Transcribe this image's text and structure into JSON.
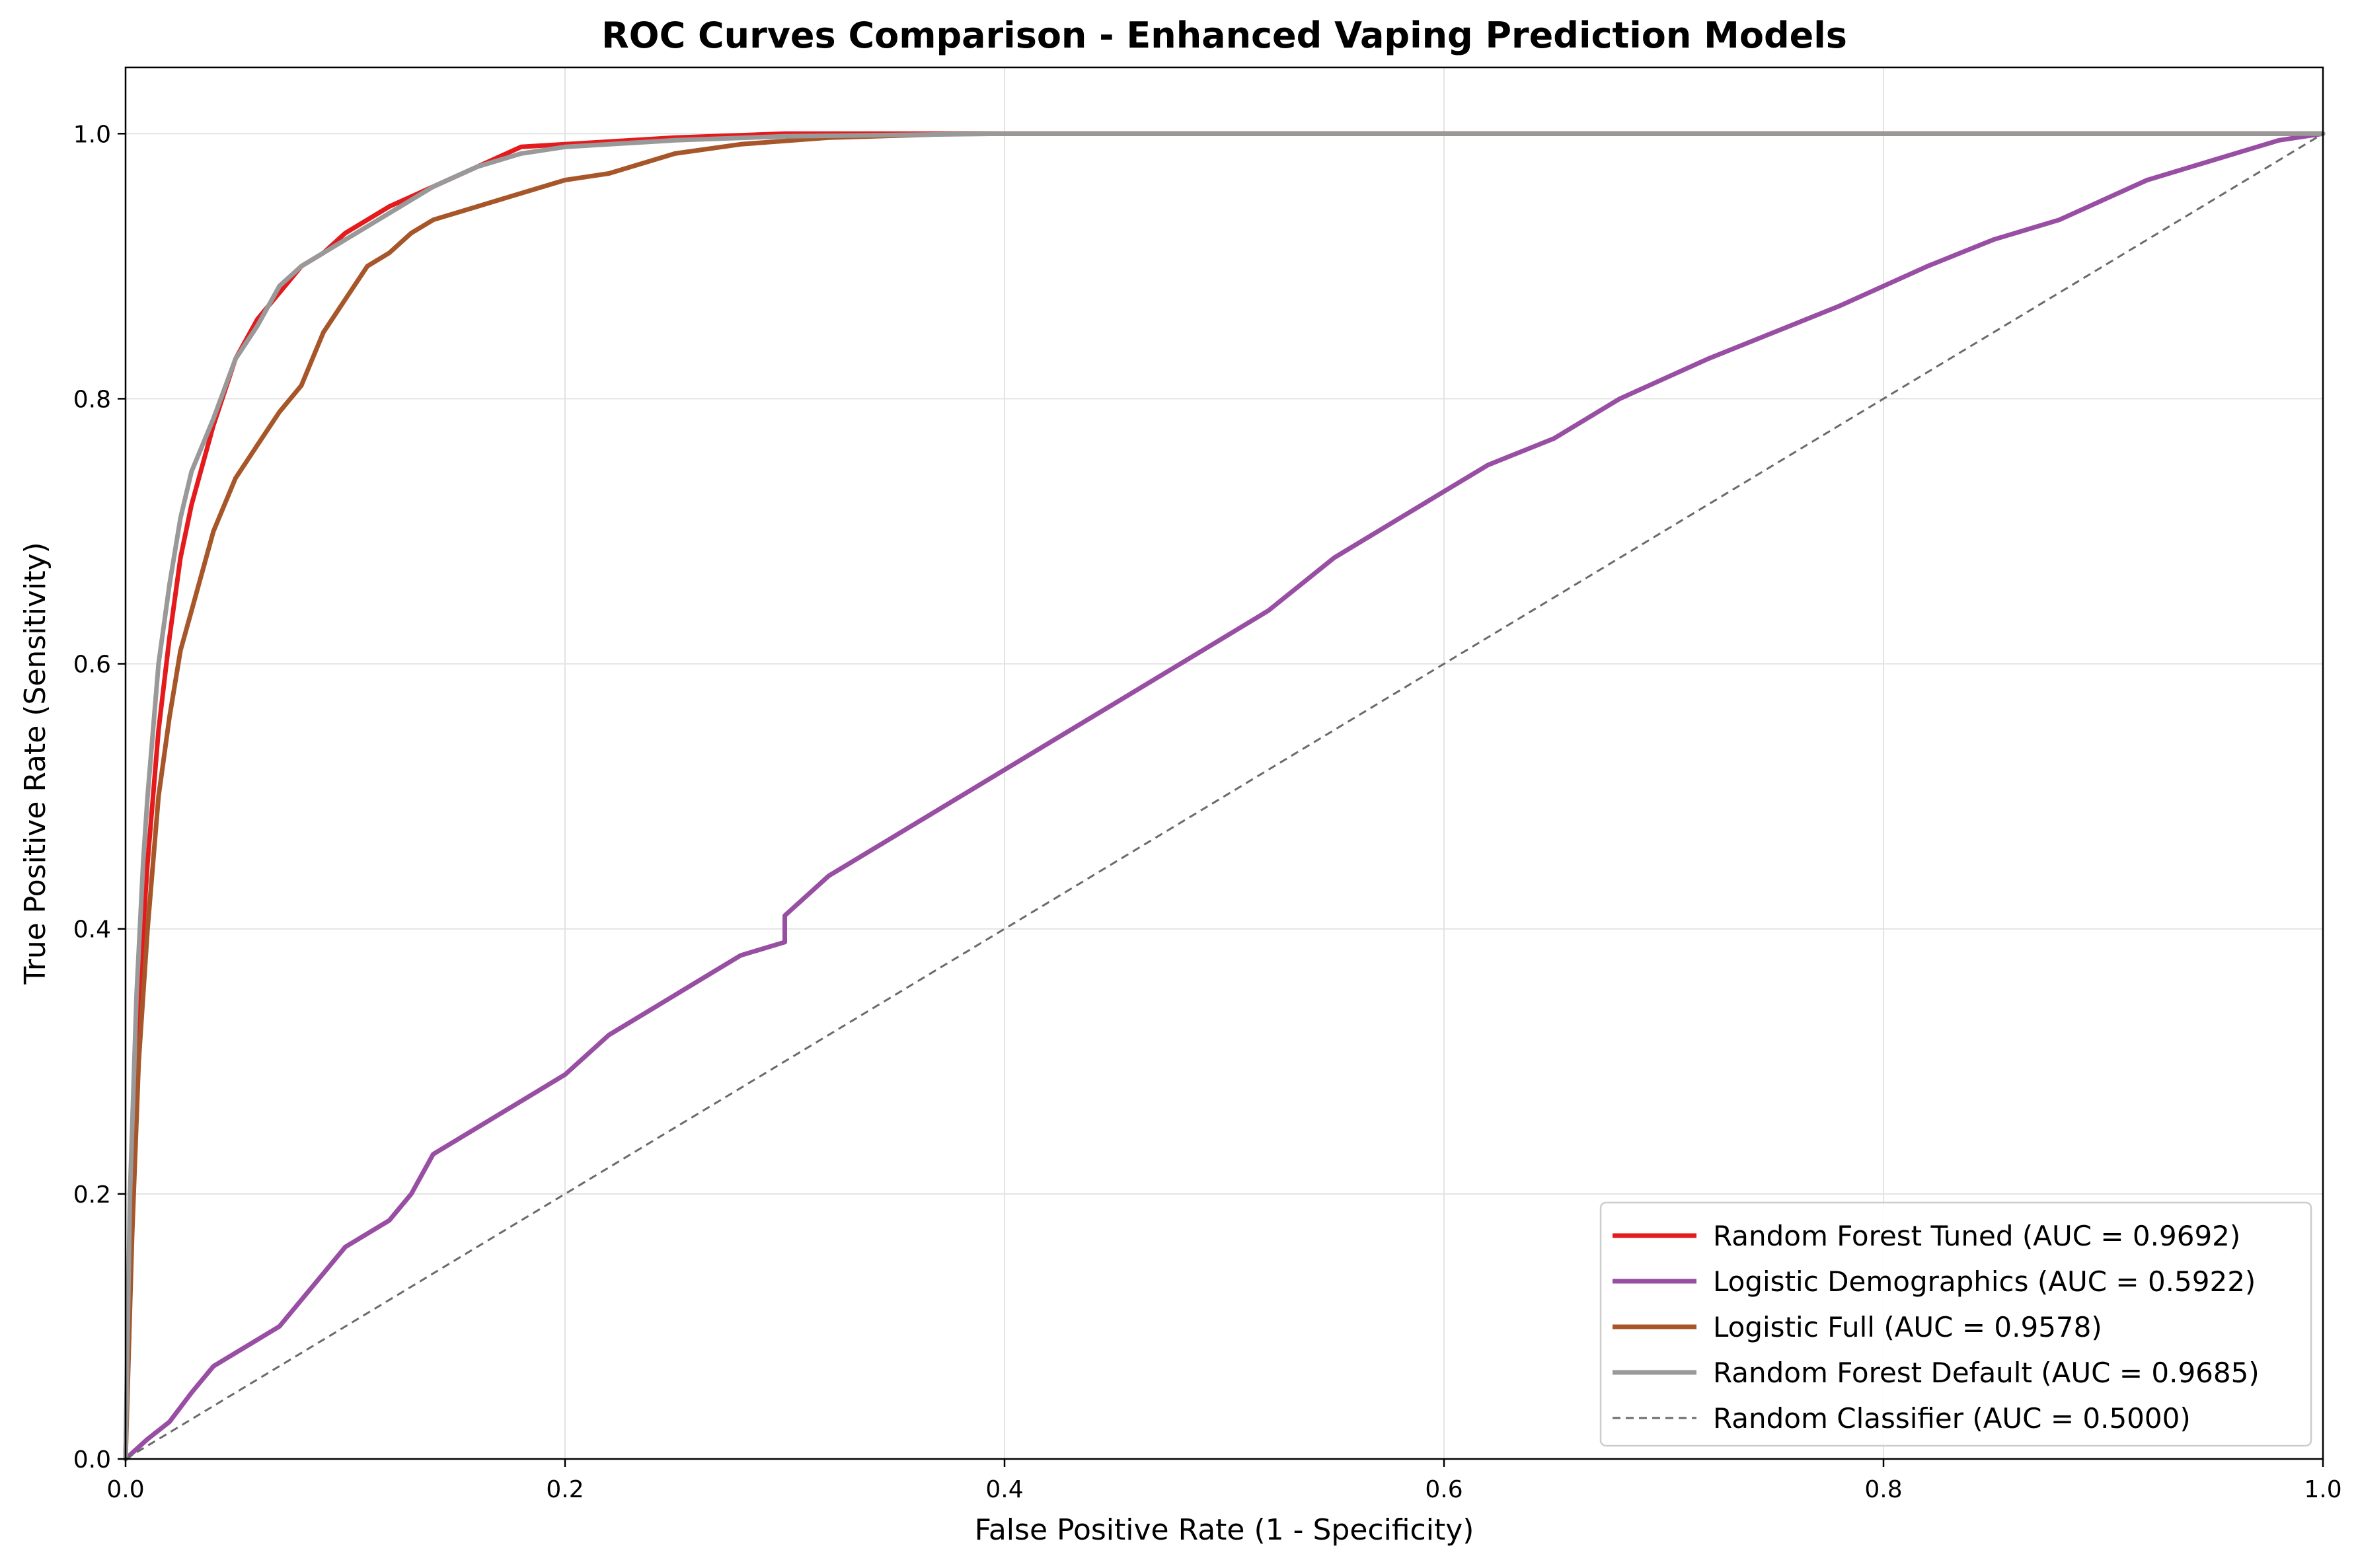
{
  "chart_data": {
    "type": "line",
    "title": "ROC Curves Comparison - Enhanced Vaping Prediction Models",
    "xlabel": "False Positive Rate (1 - Specificity)",
    "ylabel": "True Positive Rate (Sensitivity)",
    "xlim": [
      0,
      1
    ],
    "ylim": [
      0,
      1.05
    ],
    "xticks": [
      "0.0",
      "0.2",
      "0.4",
      "0.6",
      "0.8",
      "1.0"
    ],
    "yticks": [
      "0.0",
      "0.2",
      "0.4",
      "0.6",
      "0.8",
      "1.0"
    ],
    "grid": true,
    "legend_position": "bottom-right",
    "series": [
      {
        "name": "Random Forest Tuned (AUC = 0.9692)",
        "color": "#e41a1c",
        "style": "solid",
        "x": [
          0,
          0.002,
          0.005,
          0.008,
          0.01,
          0.015,
          0.02,
          0.025,
          0.03,
          0.04,
          0.05,
          0.06,
          0.07,
          0.08,
          0.09,
          0.1,
          0.12,
          0.14,
          0.16,
          0.18,
          0.2,
          0.25,
          0.3,
          0.4,
          0.6,
          0.8,
          1.0
        ],
        "y": [
          0,
          0.17,
          0.3,
          0.4,
          0.45,
          0.55,
          0.62,
          0.68,
          0.72,
          0.78,
          0.83,
          0.86,
          0.88,
          0.9,
          0.91,
          0.925,
          0.945,
          0.96,
          0.975,
          0.99,
          0.992,
          0.997,
          1.0,
          1.0,
          1.0,
          1.0,
          1.0
        ]
      },
      {
        "name": "Logistic Demographics (AUC = 0.5922)",
        "color": "#984ea3",
        "style": "solid",
        "x": [
          0,
          0.01,
          0.02,
          0.03,
          0.04,
          0.05,
          0.06,
          0.07,
          0.08,
          0.09,
          0.1,
          0.12,
          0.13,
          0.14,
          0.15,
          0.16,
          0.17,
          0.18,
          0.2,
          0.22,
          0.24,
          0.26,
          0.28,
          0.3,
          0.3,
          0.32,
          0.34,
          0.36,
          0.38,
          0.4,
          0.42,
          0.45,
          0.48,
          0.5,
          0.52,
          0.55,
          0.58,
          0.6,
          0.62,
          0.65,
          0.68,
          0.7,
          0.72,
          0.75,
          0.78,
          0.8,
          0.82,
          0.85,
          0.88,
          0.9,
          0.92,
          0.95,
          0.98,
          1.0
        ],
        "y": [
          0,
          0.015,
          0.028,
          0.05,
          0.07,
          0.08,
          0.09,
          0.1,
          0.12,
          0.14,
          0.16,
          0.18,
          0.2,
          0.23,
          0.24,
          0.25,
          0.26,
          0.27,
          0.29,
          0.32,
          0.34,
          0.36,
          0.38,
          0.39,
          0.41,
          0.44,
          0.46,
          0.48,
          0.5,
          0.52,
          0.54,
          0.57,
          0.6,
          0.62,
          0.64,
          0.68,
          0.71,
          0.73,
          0.75,
          0.77,
          0.8,
          0.815,
          0.83,
          0.85,
          0.87,
          0.885,
          0.9,
          0.92,
          0.935,
          0.95,
          0.965,
          0.98,
          0.995,
          1.0
        ]
      },
      {
        "name": "Logistic Full (AUC = 0.9578)",
        "color": "#a65628",
        "style": "solid",
        "x": [
          0,
          0.003,
          0.006,
          0.01,
          0.015,
          0.02,
          0.025,
          0.03,
          0.035,
          0.04,
          0.05,
          0.06,
          0.07,
          0.08,
          0.085,
          0.09,
          0.1,
          0.11,
          0.12,
          0.13,
          0.14,
          0.16,
          0.18,
          0.2,
          0.22,
          0.25,
          0.28,
          0.32,
          0.38,
          0.5,
          0.6,
          0.8,
          1.0
        ],
        "y": [
          0,
          0.17,
          0.3,
          0.4,
          0.5,
          0.56,
          0.61,
          0.64,
          0.67,
          0.7,
          0.74,
          0.765,
          0.79,
          0.81,
          0.83,
          0.85,
          0.875,
          0.9,
          0.91,
          0.925,
          0.935,
          0.945,
          0.955,
          0.965,
          0.97,
          0.985,
          0.992,
          0.997,
          1.0,
          1.0,
          1.0,
          1.0,
          1.0
        ]
      },
      {
        "name": "Random Forest Default (AUC = 0.9685)",
        "color": "#999999",
        "style": "solid",
        "x": [
          0,
          0.002,
          0.005,
          0.008,
          0.01,
          0.015,
          0.02,
          0.025,
          0.03,
          0.04,
          0.05,
          0.06,
          0.07,
          0.08,
          0.09,
          0.1,
          0.12,
          0.14,
          0.16,
          0.18,
          0.2,
          0.25,
          0.3,
          0.4,
          0.6,
          0.8,
          1.0
        ],
        "y": [
          0,
          0.2,
          0.35,
          0.45,
          0.5,
          0.6,
          0.66,
          0.71,
          0.745,
          0.785,
          0.83,
          0.855,
          0.885,
          0.9,
          0.91,
          0.92,
          0.94,
          0.96,
          0.975,
          0.985,
          0.99,
          0.995,
          0.998,
          1.0,
          1.0,
          1.0,
          1.0
        ]
      },
      {
        "name": "Random Classifier (AUC = 0.5000)",
        "color": "#6b6b6b",
        "style": "dashed",
        "x": [
          0,
          1
        ],
        "y": [
          0,
          1
        ]
      }
    ]
  }
}
